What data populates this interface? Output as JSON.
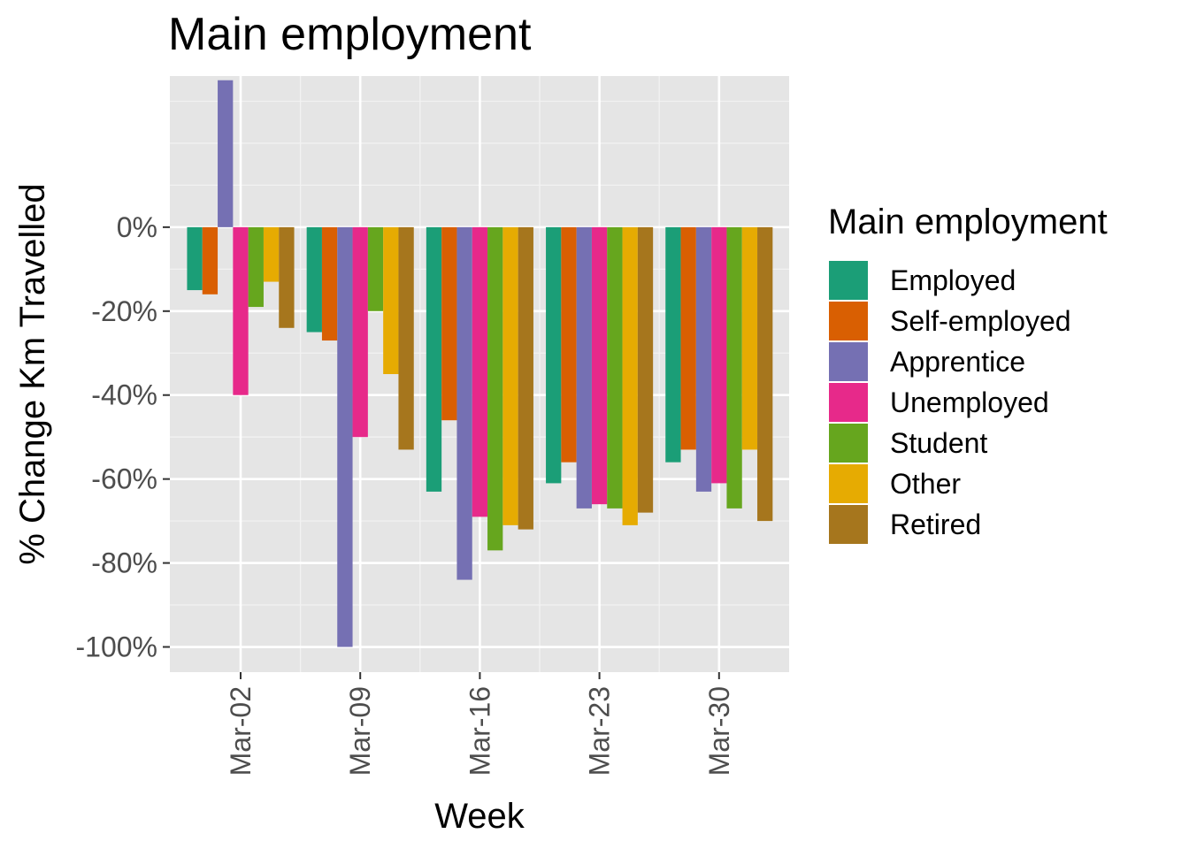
{
  "chart_data": {
    "type": "bar",
    "title": "Main employment",
    "xlabel": "Week",
    "ylabel": "% Change Km Travelled",
    "categories": [
      "Mar-02",
      "Mar-09",
      "Mar-16",
      "Mar-23",
      "Mar-30"
    ],
    "y_ticks": [
      0,
      -20,
      -40,
      -60,
      -80,
      -100
    ],
    "y_tick_labels": [
      "0%",
      "-20%",
      "-40%",
      "-60%",
      "-80%",
      "-100%"
    ],
    "ylim": [
      -106,
      36
    ],
    "grid": true,
    "legend": {
      "title": "Main employment",
      "position": "right"
    },
    "series": [
      {
        "name": "Employed",
        "color": "#1b9e77",
        "values": [
          -15,
          -25,
          -63,
          -61,
          -56
        ]
      },
      {
        "name": "Self-employed",
        "color": "#d95f02",
        "values": [
          -16,
          -27,
          -46,
          -56,
          -53
        ]
      },
      {
        "name": "Apprentice",
        "color": "#7570b3",
        "values": [
          35,
          -100,
          -84,
          -67,
          -63
        ]
      },
      {
        "name": "Unemployed",
        "color": "#e7298a",
        "values": [
          -40,
          -50,
          -69,
          -66,
          -61
        ]
      },
      {
        "name": "Student",
        "color": "#66a61e",
        "values": [
          -19,
          -20,
          -77,
          -67,
          -67
        ]
      },
      {
        "name": "Other",
        "color": "#e6ab02",
        "values": [
          -13,
          -35,
          -71,
          -71,
          -53
        ]
      },
      {
        "name": "Retired",
        "color": "#a6761d",
        "values": [
          -24,
          -53,
          -72,
          -68,
          -70
        ]
      }
    ]
  }
}
